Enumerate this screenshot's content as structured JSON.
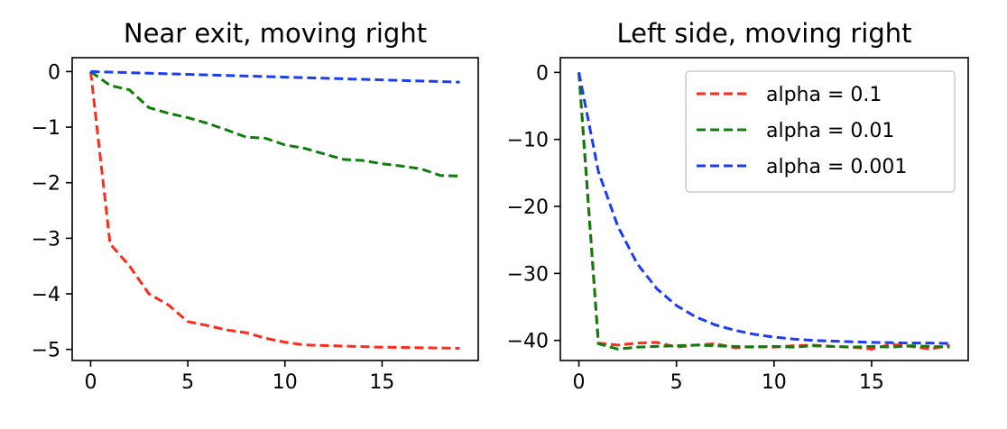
{
  "chart_data": [
    {
      "type": "line",
      "title": "Near exit, moving right",
      "xlabel": "",
      "ylabel": "",
      "xlim": [
        -0.95,
        19.95
      ],
      "ylim": [
        -5.2,
        0.25
      ],
      "xticks": [
        0,
        5,
        10,
        15
      ],
      "yticks": [
        0,
        -1,
        -2,
        -3,
        -4,
        -5
      ],
      "ytick_labels": [
        "0",
        "−1",
        "−2",
        "−3",
        "−4",
        "−5"
      ],
      "x": [
        0,
        1,
        2,
        3,
        4,
        5,
        6,
        7,
        8,
        9,
        10,
        11,
        12,
        13,
        14,
        15,
        16,
        17,
        18,
        19
      ],
      "series": [
        {
          "name": "alpha = 0.1",
          "color": "#ff2a1a",
          "values": [
            0,
            -3.1,
            -3.5,
            -4.0,
            -4.2,
            -4.5,
            -4.57,
            -4.65,
            -4.7,
            -4.8,
            -4.87,
            -4.92,
            -4.93,
            -4.94,
            -4.95,
            -4.96,
            -4.965,
            -4.97,
            -4.975,
            -4.98
          ]
        },
        {
          "name": "alpha = 0.01",
          "color": "#0a7f0a",
          "values": [
            0,
            -0.25,
            -0.33,
            -0.65,
            -0.75,
            -0.83,
            -0.93,
            -1.05,
            -1.18,
            -1.2,
            -1.32,
            -1.38,
            -1.48,
            -1.58,
            -1.6,
            -1.66,
            -1.7,
            -1.75,
            -1.87,
            -1.88
          ]
        },
        {
          "name": "alpha = 0.001",
          "color": "#1a3cf5",
          "values": [
            0,
            -0.01,
            -0.02,
            -0.03,
            -0.04,
            -0.05,
            -0.06,
            -0.07,
            -0.08,
            -0.09,
            -0.1,
            -0.11,
            -0.12,
            -0.13,
            -0.14,
            -0.15,
            -0.16,
            -0.17,
            -0.18,
            -0.19
          ]
        }
      ]
    },
    {
      "type": "line",
      "title": "Left side, moving right",
      "xlabel": "",
      "ylabel": "",
      "xlim": [
        -0.95,
        19.95
      ],
      "ylim": [
        -43.0,
        2.2
      ],
      "xticks": [
        0,
        5,
        10,
        15
      ],
      "yticks": [
        0,
        -10,
        -20,
        -30,
        -40
      ],
      "ytick_labels": [
        "0",
        "−10",
        "−20",
        "−30",
        "−40"
      ],
      "legend": "top-right",
      "x": [
        0,
        1,
        2,
        3,
        4,
        5,
        6,
        7,
        8,
        9,
        10,
        11,
        12,
        13,
        14,
        15,
        16,
        17,
        18,
        19
      ],
      "series": [
        {
          "name": "alpha = 0.1",
          "color": "#ff2a1a",
          "values": [
            0,
            -40.4,
            -40.7,
            -40.4,
            -40.3,
            -41.0,
            -40.7,
            -40.5,
            -41.1,
            -40.9,
            -41.0,
            -40.8,
            -40.7,
            -40.9,
            -41.0,
            -41.3,
            -40.6,
            -40.9,
            -41.3,
            -40.7
          ]
        },
        {
          "name": "alpha = 0.01",
          "color": "#0a7f0a",
          "values": [
            0,
            -40.5,
            -41.3,
            -41.0,
            -40.9,
            -40.8,
            -40.7,
            -40.8,
            -40.9,
            -41.0,
            -40.9,
            -41.0,
            -40.8,
            -40.9,
            -41.0,
            -40.9,
            -41.0,
            -40.8,
            -40.9,
            -41.0
          ]
        },
        {
          "name": "alpha = 0.001",
          "color": "#1a3cf5",
          "values": [
            0,
            -14.8,
            -23.0,
            -28.6,
            -32.3,
            -34.8,
            -36.5,
            -37.7,
            -38.5,
            -39.1,
            -39.5,
            -39.8,
            -40.0,
            -40.1,
            -40.2,
            -40.3,
            -40.35,
            -40.4,
            -40.4,
            -40.45
          ]
        }
      ]
    }
  ]
}
